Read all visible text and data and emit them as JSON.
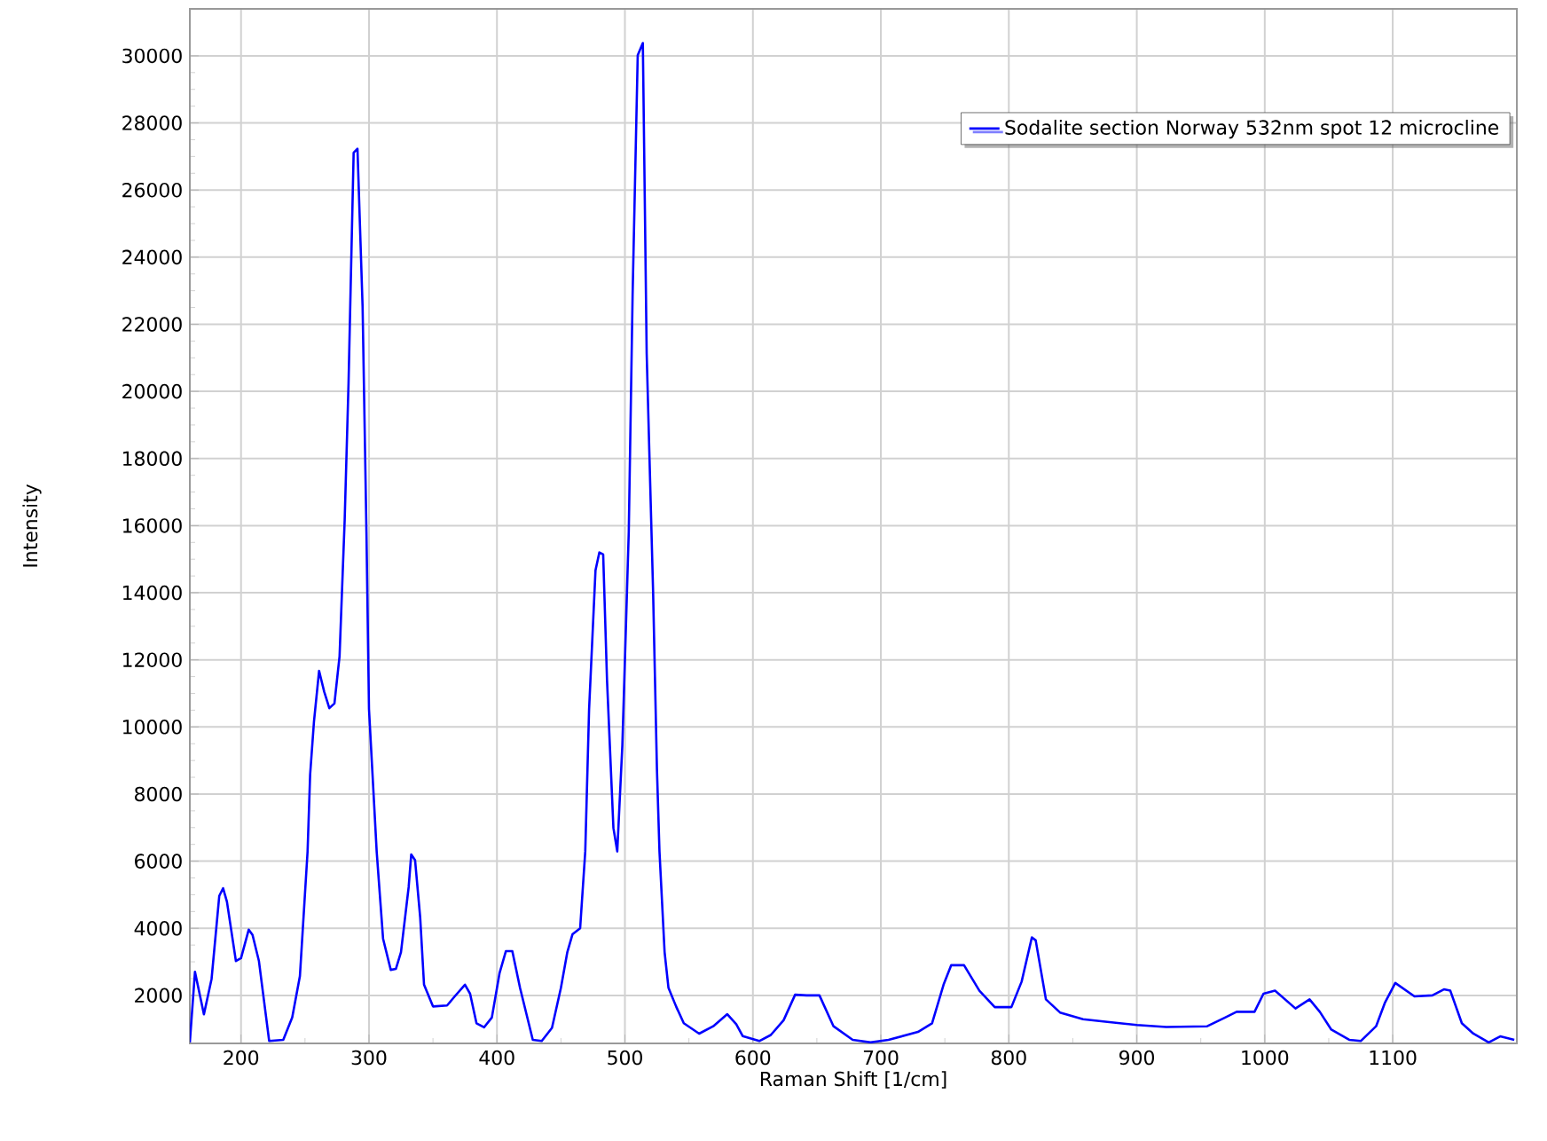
{
  "chart_data": {
    "type": "line",
    "xlabel": "Raman Shift [1/cm]",
    "ylabel": "Intensity",
    "xlim": [
      160,
      1197
    ],
    "ylim": [
      570,
      31400
    ],
    "xticks": [
      200,
      300,
      400,
      500,
      600,
      700,
      800,
      900,
      1000,
      1100
    ],
    "yticks": [
      2000,
      4000,
      6000,
      8000,
      10000,
      12000,
      14000,
      16000,
      18000,
      20000,
      22000,
      24000,
      26000,
      28000,
      30000
    ],
    "grid": true,
    "legend": "top right",
    "marker": "none",
    "line_style": "solid",
    "series": [
      {
        "name": "Sodalite section Norway 532nm spot 12 microcline",
        "color": "#0000ff",
        "x": [
          160,
          164,
          171,
          177,
          183,
          186,
          189,
          196,
          200,
          206,
          209,
          214,
          222,
          233,
          240,
          246,
          252,
          254,
          257,
          261,
          265,
          269,
          273,
          277,
          281,
          284,
          288,
          291,
          295,
          298,
          300,
          306,
          311,
          317,
          321,
          325,
          331,
          333,
          336,
          340,
          343,
          350,
          361,
          367,
          375,
          379,
          384,
          390,
          396,
          402,
          407,
          412,
          418,
          428,
          435,
          443,
          450,
          455,
          459,
          465,
          469,
          472,
          477,
          480,
          483,
          486,
          491,
          494,
          498,
          503,
          506,
          510,
          514,
          517,
          522,
          525,
          527,
          531,
          534,
          540,
          546,
          558,
          569,
          580,
          587,
          592,
          605,
          614,
          624,
          633,
          642,
          652,
          663,
          678,
          692,
          706,
          729,
          740,
          749,
          755,
          765,
          777,
          789,
          802,
          810,
          818,
          821,
          829,
          840,
          858,
          877,
          900,
          923,
          955,
          969,
          978,
          992,
          999,
          1008,
          1024,
          1035,
          1043,
          1052,
          1066,
          1075,
          1087,
          1094,
          1102,
          1117,
          1131,
          1140,
          1145,
          1154,
          1163,
          1175,
          1184,
          1195
        ],
        "values": [
          600,
          2705,
          1435,
          2494,
          4965,
          5195,
          4790,
          3022,
          3110,
          3959,
          3800,
          3020,
          640,
          675,
          1340,
          2570,
          6288,
          8580,
          10160,
          11670,
          11050,
          10560,
          10700,
          12110,
          16170,
          20230,
          27110,
          27230,
          22520,
          15820,
          10530,
          6290,
          3690,
          2760,
          2790,
          3290,
          5230,
          6200,
          6030,
          4330,
          2320,
          1670,
          1700,
          1970,
          2320,
          2050,
          1170,
          1050,
          1340,
          2660,
          3320,
          3320,
          2230,
          675,
          640,
          1030,
          2230,
          3290,
          3820,
          4000,
          6290,
          10530,
          14670,
          15200,
          15140,
          11400,
          6990,
          6290,
          9460,
          15820,
          22880,
          30020,
          30380,
          21120,
          14060,
          8760,
          6290,
          3290,
          2230,
          1670,
          1170,
          860,
          1080,
          1440,
          1140,
          790,
          640,
          820,
          1260,
          2020,
          2000,
          2000,
          1080,
          675,
          600,
          675,
          910,
          1170,
          2320,
          2900,
          2900,
          2140,
          1650,
          1650,
          2410,
          3730,
          3640,
          1880,
          1490,
          1290,
          1210,
          1120,
          1060,
          1080,
          1340,
          1510,
          1510,
          2050,
          2140,
          1610,
          1880,
          1510,
          980,
          675,
          640,
          1080,
          1790,
          2370,
          1970,
          2000,
          2180,
          2140,
          1170,
          860,
          600,
          780,
          675
        ]
      }
    ]
  }
}
